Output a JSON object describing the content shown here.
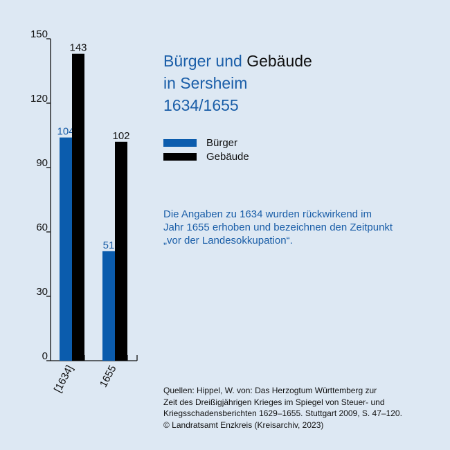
{
  "title": {
    "part1": "Bürger und ",
    "part2": "Gebäude",
    "line2": "in Sersheim",
    "line3": "1634/1655"
  },
  "legend": [
    {
      "label": "Bürger",
      "color": "#0b5cad"
    },
    {
      "label": "Gebäude",
      "color": "#000000"
    }
  ],
  "note": [
    "Die Angaben zu 1634 wurden rückwirkend im",
    "Jahr 1655 erhoben und bezeichnen den Zeitpunkt",
    "„vor der Landesokkupation“."
  ],
  "sources": [
    "Quellen: Hippel, W. von: Das Herzogtum Württemberg zur",
    "Zeit des Dreißigjährigen Krieges im Spiegel von Steuer- und",
    "Kriegsschadensberichten 1629–1655. Stuttgart 2009, S. 47–120.",
    "© Landratsamt Enzkreis (Kreisarchiv, 2023)"
  ],
  "chart_data": {
    "type": "bar",
    "categories": [
      "[1634]",
      "1655"
    ],
    "series": [
      {
        "name": "Bürger",
        "values": [
          104,
          51
        ],
        "color": "#0b5cad",
        "label_color": "#1a5ea8"
      },
      {
        "name": "Gebäude",
        "values": [
          143,
          102
        ],
        "color": "#000000",
        "label_color": "#111111"
      }
    ],
    "y_ticks": [
      0,
      30,
      60,
      90,
      120,
      150
    ],
    "ylim": [
      0,
      150
    ],
    "title": "Bürger und Gebäude in Sersheim 1634/1655",
    "xlabel": "",
    "ylabel": "",
    "grid": false,
    "legend": "top-right"
  }
}
